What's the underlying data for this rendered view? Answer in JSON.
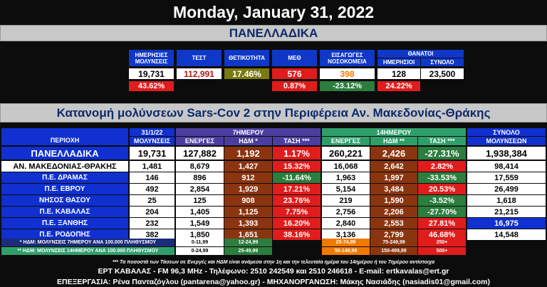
{
  "title": "Monday, January 31, 2022",
  "national_banner": "ΠΑΝΕΛΛΑΔΙΚΑ",
  "national": {
    "headers": {
      "daily_infections": "ΗΜΕΡΗΣΙΕΣ ΜΟΛΥΝΣΕΙΣ",
      "tests": "ΤΕΣΤ",
      "positivity": "ΘΕΤΙΚΟΤΗΤΑ",
      "icu": "ΜΕΘ",
      "admissions": "ΕΙΣΑΓΩΓΕΣ ΝΟΣΟΚΟΜΕΙΑ",
      "deaths": "ΘΑΝΑΤΟΙ",
      "deaths_daily": "ΗΜΕΡΗΣΙΟΙ",
      "deaths_total": "ΣΥΝΟΛΟ"
    },
    "values": {
      "daily_infections": "19,731",
      "tests": "112,991",
      "positivity": "17.46%",
      "icu": "576",
      "admissions": "398",
      "deaths_daily": "128",
      "deaths_total": "23,500"
    },
    "changes": {
      "daily_infections": "43.62%",
      "icu": "0.87%",
      "admissions": "-23.12%",
      "deaths_daily": "24.22%"
    }
  },
  "regional_banner": "Κατανομή μολύνσεων Sars-Cov 2 στην Περιφέρεια Αν. Μακεδονίας-Θράκης",
  "table": {
    "date": "31/1/22",
    "group_7": "7ΗΜΕΡΟΥ",
    "group_14": "14ΗΜΕΡΟΥ",
    "group_total": "ΣΥΝΟΛΟ",
    "cols": {
      "area": "ΠΕΡΙΟΧΗ",
      "infections": "ΜΟΛΥΝΣΕΙΣ",
      "active7": "ΕΝΕΡΓΕΣ",
      "ihdm7": "ΗΔΜ *",
      "trend7": "ΤΑΣΗ ***",
      "active14": "ΕΝΕΡΓΕΣ",
      "ihdm14": "ΗΔΜ **",
      "trend14": "ΤΑΣΗ ***",
      "total": "ΜΟΛΥΝΣΕΩΝ"
    },
    "rows": [
      {
        "area": "ΠΑΝΕΛΛΑΔΙΚΑ",
        "inf": "19,731",
        "a7": "127,882",
        "h7": "1,192",
        "t7": "1.17%",
        "a14": "260,221",
        "h14": "2,426",
        "t14": "-27.31%",
        "tot": "1,938,384"
      },
      {
        "area": "ΑΝ. ΜΑΚΕΔΟΝΙΑΣ-ΘΡΑΚΗΣ",
        "inf": "1,481",
        "a7": "8,679",
        "h7": "1,427",
        "t7": "15.32%",
        "a14": "16,068",
        "h14": "2,642",
        "t14": "2.82%",
        "tot": "98,414"
      },
      {
        "area": "Π.Ε. ΔΡΑΜΑΣ",
        "inf": "146",
        "a7": "896",
        "h7": "912",
        "t7": "-11.64%",
        "a14": "1,963",
        "h14": "1,997",
        "t14": "-33.53%",
        "tot": "17,559"
      },
      {
        "area": "Π.Ε. ΕΒΡΟΥ",
        "inf": "492",
        "a7": "2,854",
        "h7": "1,929",
        "t7": "17.21%",
        "a14": "5,154",
        "h14": "3,484",
        "t14": "20.53%",
        "tot": "26,499"
      },
      {
        "area": "ΝΗΣΟΣ ΘΑΣΟΥ",
        "inf": "25",
        "a7": "125",
        "h7": "908",
        "t7": "23.76%",
        "a14": "219",
        "h14": "1,590",
        "t14": "-3.52%",
        "tot": "1,618"
      },
      {
        "area": "Π.Ε. ΚΑΒΑΛΑΣ",
        "inf": "204",
        "a7": "1,405",
        "h7": "1,125",
        "t7": "7.75%",
        "a14": "2,756",
        "h14": "2,206",
        "t14": "-27.70%",
        "tot": "21,215"
      },
      {
        "area": "Π.Ε. ΞΑΝΘΗΣ",
        "inf": "232",
        "a7": "1,549",
        "h7": "1,393",
        "t7": "16.20%",
        "a14": "2,840",
        "h14": "2,553",
        "t14": "27.81%",
        "tot": "16,975"
      },
      {
        "area": "Π.Ε. ΡΟΔΟΠΗΣ",
        "inf": "382",
        "a7": "1,850",
        "h7": "1,651",
        "t7": "38.16%",
        "a14": "3,136",
        "h14": "2,799",
        "t14": "46.68%",
        "tot": "14,548"
      }
    ],
    "legend7_label": "* ΗΔΜ: ΜΟΛΥΝΣΕΙΣ 7ΗΜΕΡΟΥ ΑΝΑ 100.000 ΠΛΗΘΥΣΜΟΥ",
    "legend14_label": "** ΗΔΜ: ΜΟΛΥΝΣΕΙΣ 14ΗΜΕΡΟΥ ΑΝΑ 100.000 ΠΛΗΘΥΣΜΟΥ",
    "legend7": [
      "0-11,99",
      "12-24,99",
      "25-74,99",
      "75-249,99",
      "250+"
    ],
    "legend14": [
      "0-24,99",
      "25-49,99",
      "50-149,99",
      "150-499,99",
      "500+"
    ]
  },
  "footnote": "*** Τα ποσοστά των Τάσεων σε Ενεργές και ΗΔΜ είναι ανάμεσα στην 1η και την τελευταία ημέρα του 14ημέρου ή του 7ημέρου αντίστοιχα",
  "footer_line1": "ΕΡΤ ΚΑΒΑΛΑΣ - FM 96,3 MHz - Τηλέφωνο:  2510 242549 και 2510 246618 - E-mail: ertkavalas@ert.gr",
  "footer_line2": "ΕΠΕΞΕΡΓΑΣΙΑ: Ρένα Πανταζόγλου (pantarena@yahoo.gr) - ΜΗΧΑΝΟΡΓΑΝΩΣΗ: Μάκης Νασιάδης (nasiadis01@gmail.com)"
}
